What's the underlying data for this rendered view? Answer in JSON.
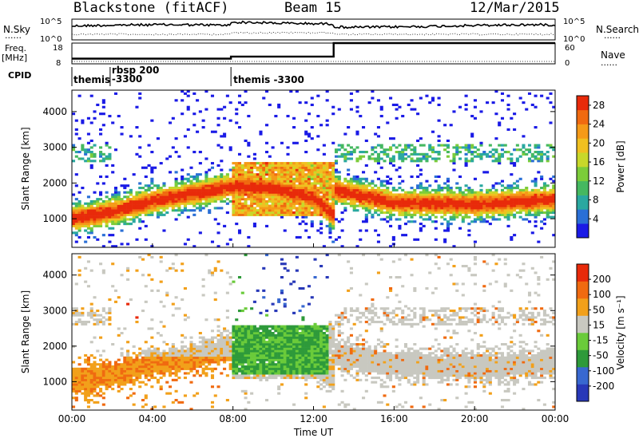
{
  "header": {
    "title": "Blackstone (fitACF)",
    "beam": "Beam 15",
    "date": "12/Mar/2015"
  },
  "top_panels": {
    "left_label_nsky": "N.Sky",
    "left_label_freq": "Freq.",
    "left_label_freq_unit": "[MHz]",
    "left_label_cpid": "CPID",
    "right_label_nsearch": "N.Search",
    "right_label_nave": "Nave",
    "legend_dots": "......",
    "noise_ticks_left": [
      "10^5",
      "10^0"
    ],
    "noise_ticks_right": [
      "10^5",
      "10^0"
    ],
    "freq_ticks_left": [
      "18",
      "8"
    ],
    "nave_ticks_right": [
      "60",
      "0"
    ],
    "cpid_labels": [
      {
        "text": "themis",
        "start_hr": 0.0
      },
      {
        "text": "rbsp 200",
        "start_hr": 1.9
      },
      {
        "text": "-3300",
        "start_hr": 1.9
      },
      {
        "text": "themis -3300",
        "start_hr": 7.9
      }
    ],
    "freq_steps": [
      {
        "from_hr": 0.0,
        "to_hr": 7.9,
        "mhz": 10.5
      },
      {
        "from_hr": 7.9,
        "to_hr": 13.0,
        "mhz": 11.5
      },
      {
        "from_hr": 13.0,
        "to_hr": 24.0,
        "mhz": 18.0
      }
    ]
  },
  "chart_data": [
    {
      "type": "heatmap",
      "ylabel": "Slant Range [km]",
      "xlabel": "Time UT",
      "xlim": [
        0,
        24
      ],
      "ylim": [
        200,
        4600
      ],
      "x_ticks": [
        "00:00",
        "04:00",
        "08:00",
        "12:00",
        "16:00",
        "20:00",
        "00:00"
      ],
      "y_ticks": [
        1000,
        2000,
        3000,
        4000
      ],
      "colorbar": {
        "label": "Power [dB]",
        "ticks": [
          4,
          8,
          12,
          16,
          20,
          24,
          28
        ],
        "range": [
          0,
          30
        ],
        "colors": [
          "#1a1ae6",
          "#2a6fd6",
          "#2aa8a0",
          "#45b860",
          "#7ccc3a",
          "#c8d82a",
          "#f0c020",
          "#f59a18",
          "#f06a10",
          "#e82a0a"
        ]
      },
      "ridge_km_by_hour": [
        [
          0,
          1000
        ],
        [
          2,
          1200
        ],
        [
          4,
          1500
        ],
        [
          6,
          1700
        ],
        [
          7.9,
          1900
        ],
        [
          10,
          1850
        ],
        [
          12,
          1600
        ],
        [
          13,
          1100
        ],
        [
          13.1,
          1800
        ],
        [
          16,
          1450
        ],
        [
          20,
          1400
        ],
        [
          24,
          1550
        ]
      ]
    },
    {
      "type": "heatmap",
      "ylabel": "Slant Range [km]",
      "xlabel": "Time UT",
      "xlim": [
        0,
        24
      ],
      "ylim": [
        200,
        4600
      ],
      "x_ticks": [
        "00:00",
        "04:00",
        "08:00",
        "12:00",
        "16:00",
        "20:00",
        "00:00"
      ],
      "y_ticks": [
        1000,
        2000,
        3000,
        4000
      ],
      "colorbar": {
        "label": "Velocity [m s⁻¹]",
        "ticks": [
          200,
          100,
          50,
          15,
          -15,
          -50,
          -100,
          -200
        ],
        "colors": [
          "#2838b8",
          "#3868d0",
          "#2e9a3a",
          "#6acb3a",
          "#c8c8c0",
          "#f2a01a",
          "#f06a10",
          "#e82a0a"
        ]
      }
    }
  ]
}
